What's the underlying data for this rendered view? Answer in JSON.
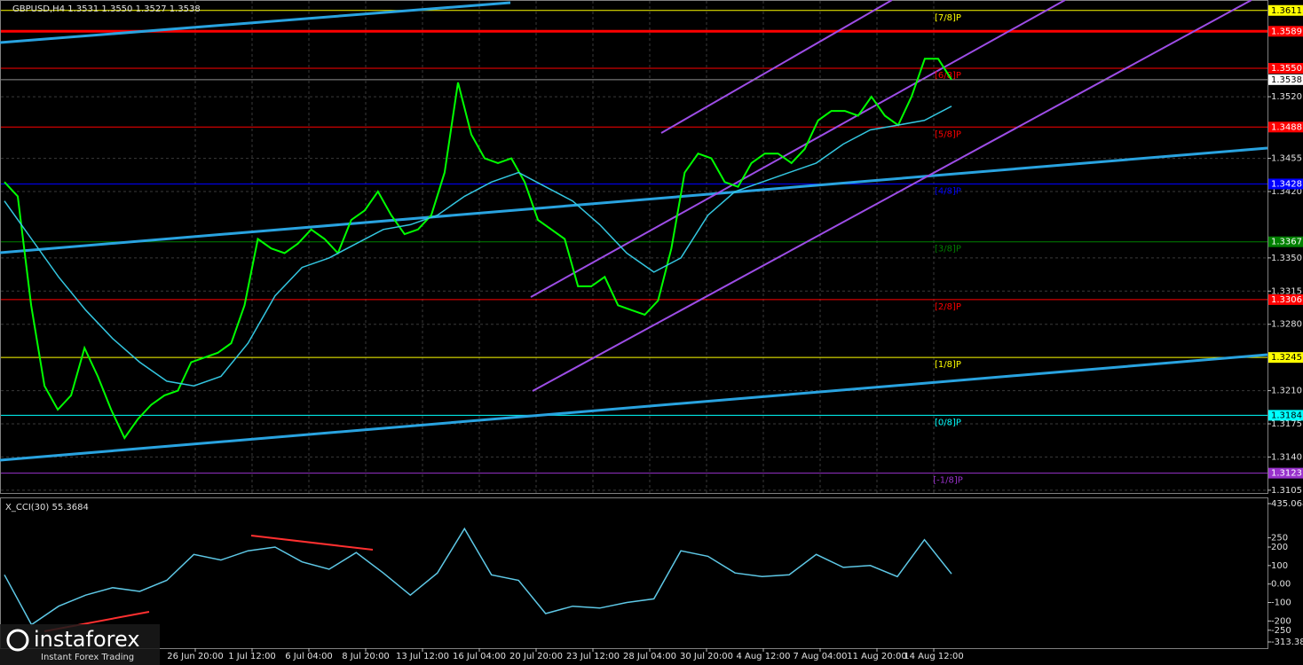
{
  "chart_data": [
    {
      "type": "line",
      "title": "GBPUSD,H4  1.3531 1.3550 1.3527 1.3538",
      "ylim": [
        1.3103,
        1.3622
      ],
      "yticks": [
        1.3105,
        {
          "value": 1.314,
          "label": "1.3140"
        },
        1.3175,
        {
          "value": 1.321,
          "label": "1.3210"
        },
        {
          "value": 1.328,
          "label": "1.3280"
        },
        1.3315,
        {
          "value": 1.335,
          "label": "1.3350"
        },
        {
          "value": 1.342,
          "label": "1.3420"
        },
        1.3455,
        {
          "value": 1.352,
          "label": "1.3520"
        }
      ],
      "grid": true,
      "x_labels": [
        "26 Jun 20:00",
        "1 Jul 12:00",
        "6 Jul 04:00",
        "8 Jul 20:00",
        "13 Jul 12:00",
        "16 Jul 04:00",
        "20 Jul 20:00",
        "23 Jul 12:00",
        "28 Jul 04:00",
        "30 Jul 20:00",
        "4 Aug 12:00",
        "7 Aug 04:00",
        "11 Aug 20:00",
        "14 Aug 12:00"
      ],
      "series": [
        {
          "color": "#00ff00",
          "values": [
            1.343,
            1.3415,
            1.33,
            1.3215,
            1.319,
            1.3205,
            1.3255,
            1.3225,
            1.319,
            1.316,
            1.318,
            1.3195,
            1.3205,
            1.321,
            1.324,
            1.3245,
            1.325,
            1.326,
            1.33,
            1.337,
            1.336,
            1.3355,
            1.3365,
            1.338,
            1.337,
            1.3355,
            1.339,
            1.34,
            1.342,
            1.3395,
            1.3375,
            1.338,
            1.3395,
            1.344,
            1.3535,
            1.348,
            1.3455,
            1.345,
            1.3455,
            1.343,
            1.339,
            1.338,
            1.337,
            1.332,
            1.332,
            1.333,
            1.33,
            1.3295,
            1.329,
            1.3305,
            1.336,
            1.344,
            1.346,
            1.3455,
            1.343,
            1.3425,
            1.345,
            1.346,
            1.346,
            1.345,
            1.3465,
            1.3495,
            1.3505,
            1.3505,
            1.35,
            1.352,
            1.35,
            1.349,
            1.352,
            1.356,
            1.356,
            1.3538
          ]
        },
        {
          "color": "#33c6e0",
          "values": [
            1.341,
            1.337,
            1.333,
            1.3295,
            1.3265,
            1.324,
            1.322,
            1.3215,
            1.3225,
            1.326,
            1.331,
            1.334,
            1.335,
            1.3365,
            1.338,
            1.3385,
            1.3395,
            1.3415,
            1.343,
            1.344,
            1.3425,
            1.341,
            1.3385,
            1.3355,
            1.3335,
            1.335,
            1.3395,
            1.342,
            1.343,
            1.344,
            1.345,
            1.347,
            1.3485,
            1.349,
            1.3495,
            1.351
          ]
        }
      ],
      "levels": [
        {
          "price": 1.3611,
          "label": "[7/8]P",
          "tag": "1.3611",
          "color": "#ffff00"
        },
        {
          "price": 1.355,
          "label": "[6/8]P",
          "tag": "1.3550",
          "color": "#ff0000"
        },
        {
          "price": 1.3488,
          "label": "[5/8]P",
          "tag": "1.3488",
          "color": "#ff0000"
        },
        {
          "price": 1.3428,
          "label": "[4/8]P",
          "tag": "1.3428",
          "color": "#0000ff"
        },
        {
          "price": 1.3367,
          "label": "[3/8]P",
          "tag": "1.3367",
          "color": "#008000"
        },
        {
          "price": 1.3306,
          "label": "[2/8]P",
          "tag": "1.3306",
          "color": "#ff0000"
        },
        {
          "price": 1.3245,
          "label": "[1/8]P",
          "tag": "1.3245",
          "color": "#ffff00"
        },
        {
          "price": 1.3184,
          "label": "[0/8]P",
          "tag": "1.3184",
          "color": "#00ffff"
        },
        {
          "price": 1.3123,
          "label": "[-1/8]P",
          "tag": "1.3123",
          "color": "#9932cc"
        }
      ],
      "hlines": [
        {
          "price": 1.3589,
          "tag": "1.3589",
          "color": "#ff0000"
        }
      ],
      "last": {
        "price": 1.3538,
        "tag": "1.3538"
      },
      "watermark": {
        "brand": "instaforex",
        "tagline": "Instant Forex Trading"
      }
    },
    {
      "type": "line",
      "title": "X_CCI(30) 55.3684",
      "ylim": [
        -313.386,
        435.0684
      ],
      "yticks": [
        435.0684,
        250,
        200,
        100,
        {
          "value": 0,
          "label": "0.00"
        },
        -100,
        -200,
        -250,
        -313.386
      ],
      "series": [
        {
          "color": "#5ec8e6",
          "values": [
            50,
            -220,
            -120,
            -60,
            -20,
            -40,
            20,
            160,
            130,
            180,
            200,
            120,
            80,
            170,
            60,
            -60,
            60,
            300,
            50,
            20,
            -160,
            -120,
            -130,
            -100,
            -80,
            180,
            150,
            60,
            40,
            50,
            160,
            90,
            100,
            40,
            240,
            55
          ]
        }
      ]
    }
  ]
}
